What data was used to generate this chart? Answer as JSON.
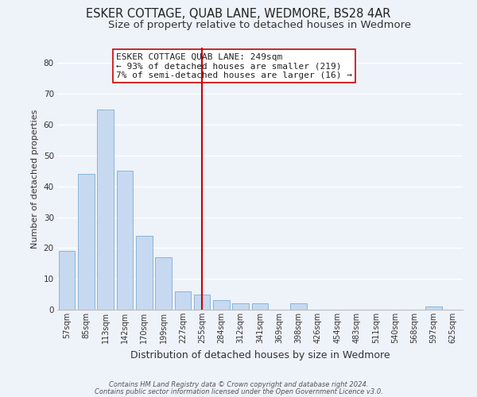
{
  "title": "ESKER COTTAGE, QUAB LANE, WEDMORE, BS28 4AR",
  "subtitle": "Size of property relative to detached houses in Wedmore",
  "xlabel": "Distribution of detached houses by size in Wedmore",
  "ylabel": "Number of detached properties",
  "bar_labels": [
    "57sqm",
    "85sqm",
    "113sqm",
    "142sqm",
    "170sqm",
    "199sqm",
    "227sqm",
    "255sqm",
    "284sqm",
    "312sqm",
    "341sqm",
    "369sqm",
    "398sqm",
    "426sqm",
    "454sqm",
    "483sqm",
    "511sqm",
    "540sqm",
    "568sqm",
    "597sqm",
    "625sqm"
  ],
  "bar_values": [
    19,
    44,
    65,
    45,
    24,
    17,
    6,
    5,
    3,
    2,
    2,
    0,
    2,
    0,
    0,
    0,
    0,
    0,
    0,
    1,
    0
  ],
  "bar_color": "#c6d9f0",
  "bar_edge_color": "#7bafd4",
  "vline_x": 7.0,
  "vline_color": "#cc0000",
  "ylim": [
    0,
    85
  ],
  "yticks": [
    0,
    10,
    20,
    30,
    40,
    50,
    60,
    70,
    80
  ],
  "annotation_title": "ESKER COTTAGE QUAB LANE: 249sqm",
  "annotation_line1": "← 93% of detached houses are smaller (219)",
  "annotation_line2": "7% of semi-detached houses are larger (16) →",
  "annotation_box_color": "#ffffff",
  "annotation_box_edge": "#cc0000",
  "footnote1": "Contains HM Land Registry data © Crown copyright and database right 2024.",
  "footnote2": "Contains public sector information licensed under the Open Government Licence v3.0.",
  "bg_color": "#eef2f9",
  "grid_color": "#ffffff",
  "title_fontsize": 10.5,
  "subtitle_fontsize": 9.5,
  "xlabel_fontsize": 9,
  "ylabel_fontsize": 8,
  "tick_fontsize": 7,
  "annotation_fontsize": 8,
  "footnote_fontsize": 6
}
